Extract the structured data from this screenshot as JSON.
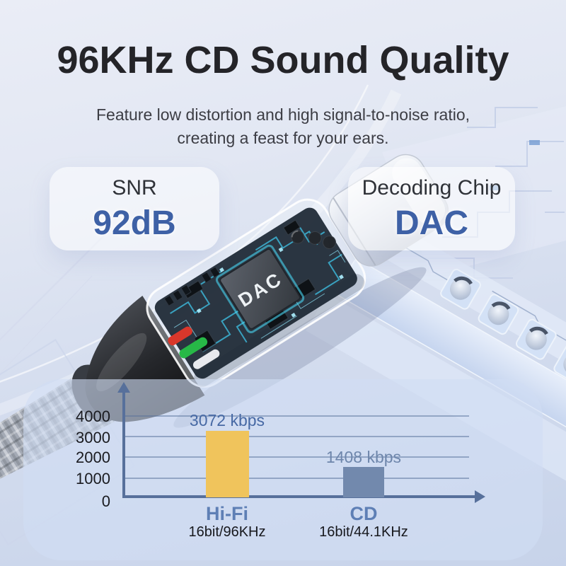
{
  "header": {
    "title": "96KHz CD Sound Quality",
    "subtitle_line1": "Feature low distortion and high signal-to-noise ratio,",
    "subtitle_line2": "creating a feast for your ears."
  },
  "specs": {
    "snr_label": "SNR",
    "snr_value": "92dB",
    "chip_label": "Decoding Chip",
    "chip_value": "DAC"
  },
  "product": {
    "chip_text": "DAC"
  },
  "style": {
    "accent_blue": "#3E61A6",
    "axis_color": "#57709B",
    "background_top": "#EAEDF6",
    "background_bottom": "#C7D3EA"
  },
  "chart_data": {
    "type": "bar",
    "title": "",
    "xlabel": "",
    "ylabel": "",
    "unit": "kbps",
    "categories": [
      "Hi-Fi",
      "CD"
    ],
    "category_sublabels": [
      "16bit/96KHz",
      "16bit/44.1KHz"
    ],
    "values": [
      3072,
      1408
    ],
    "value_labels": [
      "3072 kbps",
      "1408 kbps"
    ],
    "yticks": [
      0,
      1000,
      2000,
      3000,
      4000
    ],
    "ylim": [
      0,
      4000
    ],
    "grid": true,
    "legend": false,
    "bar_colors": [
      "#F0C45C",
      "#7289AD"
    ],
    "value_label_colors": [
      "#4769A4",
      "#6E86AB"
    ]
  }
}
